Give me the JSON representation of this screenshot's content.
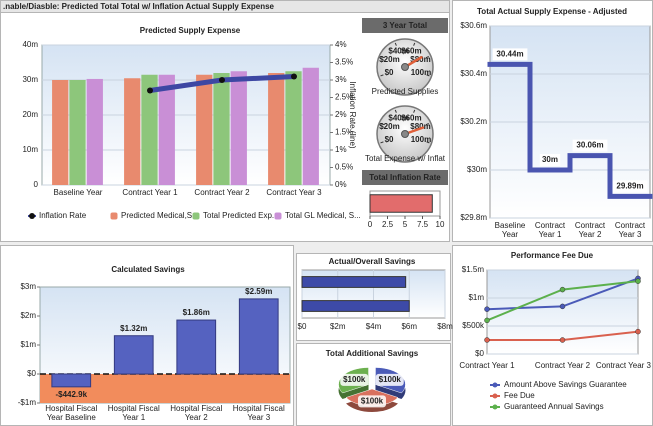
{
  "header": {
    "title": ".nable/Diasble: Predicted Total Total w/ Inflation Actual Supply Expense"
  },
  "chart_data": [
    {
      "type": "bar",
      "title": "Predicted Supply Expense",
      "categories": [
        "Baseline Year",
        "Contract Year 1",
        "Contract Year 2",
        "Contract Year 3"
      ],
      "series": [
        {
          "name": "Inflation Rate",
          "type": "line",
          "axis": "y2",
          "color": "#3d47a3",
          "values": [
            null,
            2.7,
            3.0,
            3.1
          ]
        },
        {
          "name": "Predicted Medical,S...",
          "color": "#e88a6e",
          "values": [
            30,
            30.5,
            31.5,
            32
          ]
        },
        {
          "name": "Total Predicted Exp...",
          "color": "#8dc67b",
          "values": [
            30,
            31.5,
            32,
            32.5
          ]
        },
        {
          "name": "Total GL Medical, S...",
          "color": "#c98fd6",
          "values": [
            30.3,
            31.5,
            32.5,
            33.5
          ]
        }
      ],
      "ylim": [
        0,
        40
      ],
      "yticks": [
        0,
        {
          "value": 10,
          "label": "10m"
        },
        {
          "value": 20,
          "label": "20m"
        },
        {
          "value": 30,
          "label": "30m"
        },
        {
          "value": 40,
          "label": "40m"
        }
      ],
      "y2lim": [
        0,
        4
      ],
      "y2ticks": [
        {
          "value": 0,
          "label": "0%"
        },
        {
          "value": 0.5,
          "label": "0.5%"
        },
        {
          "value": 1,
          "label": "1%"
        },
        {
          "value": 1.5,
          "label": "1.5%"
        },
        {
          "value": 2,
          "label": "2%"
        },
        {
          "value": 2.5,
          "label": "2.5%"
        },
        {
          "value": 3,
          "label": "3%"
        },
        {
          "value": 3.5,
          "label": "3.5%"
        },
        {
          "value": 4,
          "label": "4%"
        }
      ],
      "y2label": "Inflation Rate (line)",
      "grid": true
    },
    {
      "type": "gauge",
      "title": "3 Year Total",
      "label": "Predicted Supplies",
      "value": 77,
      "lim": [
        0,
        100
      ],
      "ticks": [
        {
          "value": 0,
          "label": "$0"
        },
        {
          "value": 20,
          "label": "$20m"
        },
        {
          "value": 40,
          "label": "$40m"
        },
        {
          "value": 60,
          "label": "$60m"
        },
        {
          "value": 80,
          "label": "$80m"
        },
        {
          "value": 100,
          "label": "100m"
        }
      ]
    },
    {
      "type": "gauge",
      "label": "Total Expense w/ Inflat",
      "value": 82,
      "lim": [
        0,
        100
      ],
      "ticks": [
        {
          "value": 0,
          "label": "$0"
        },
        {
          "value": 20,
          "label": "$20m"
        },
        {
          "value": 40,
          "label": "$40m"
        },
        {
          "value": 60,
          "label": "$60m"
        },
        {
          "value": 80,
          "label": "$80m"
        },
        {
          "value": 100,
          "label": "100m"
        }
      ]
    },
    {
      "type": "hbar",
      "title": "Total Inflation Rate",
      "values": [
        8.9
      ],
      "color": "#e26c6c",
      "xlim": [
        0,
        10
      ],
      "xticks": [
        0,
        2.5,
        5,
        7.5,
        10
      ]
    },
    {
      "type": "step",
      "title": "Total Actual Supply Expense - Adjusted",
      "categories": [
        "Baseline Year",
        "Contract Year 1",
        "Contract Year 2",
        "Contract Year 3"
      ],
      "values": [
        30.44,
        30,
        30.06,
        29.89
      ],
      "value_labels": [
        "30.44m",
        "30m",
        "30.06m",
        "29.89m"
      ],
      "color": "#4a55b0",
      "ylim": [
        29.8,
        30.6
      ],
      "yticks": [
        {
          "value": 29.8,
          "label": "$29.8m"
        },
        {
          "value": 30,
          "label": "$30m"
        },
        {
          "value": 30.2,
          "label": "$30.2m"
        },
        {
          "value": 30.4,
          "label": "$30.4m"
        },
        {
          "value": 30.6,
          "label": "$30.6m"
        }
      ],
      "grid": true
    },
    {
      "type": "bar",
      "title": "Calculated Savings",
      "categories": [
        "Hospital Fiscal Year Baseline",
        "Hospital Fiscal Year 1",
        "Hospital Fiscal Year 2",
        "Hospital Fiscal Year 3"
      ],
      "values": [
        -0.4429,
        1.32,
        1.86,
        2.59
      ],
      "value_labels": [
        "-$442.9k",
        "$1.32m",
        "$1.86m",
        "$2.59m"
      ],
      "color": "#5562c0",
      "ylim": [
        -1,
        3
      ],
      "yticks": [
        {
          "value": -1,
          "label": "-$1m"
        },
        {
          "value": 0,
          "label": "$0"
        },
        {
          "value": 1,
          "label": "$1m"
        },
        {
          "value": 2,
          "label": "$2m"
        },
        {
          "value": 3,
          "label": "$3m"
        }
      ]
    },
    {
      "type": "hbar",
      "title": "Actual/Overall Savings",
      "values": [
        5.8,
        6.0
      ],
      "color": "#3d4aa8",
      "xlim": [
        0,
        8
      ],
      "xticks": [
        {
          "value": 0,
          "label": "$0"
        },
        {
          "value": 2,
          "label": "$2m"
        },
        {
          "value": 4,
          "label": "$4m"
        },
        {
          "value": 6,
          "label": "$6m"
        },
        {
          "value": 8,
          "label": "$8m"
        }
      ],
      "grid": true
    },
    {
      "type": "pie",
      "title": "Total Additional Savings",
      "values": [
        100,
        100,
        100
      ],
      "value_labels": [
        "$100k",
        "$100k",
        "$100k"
      ],
      "colors": [
        "#6cb04e",
        "#4b5bb8",
        "#d9705e"
      ]
    },
    {
      "type": "line",
      "title": "Performance Fee Due",
      "categories": [
        "Contract Year 1",
        "Contract Year 2",
        "Contract Year 3"
      ],
      "series": [
        {
          "name": "Amount Above Savings Guarantee",
          "color": "#4a5ab8",
          "values": [
            0.8,
            0.85,
            1.35
          ]
        },
        {
          "name": "Fee Due",
          "color": "#d9604e",
          "values": [
            0.25,
            0.25,
            0.4
          ]
        },
        {
          "name": "Guaranteed Annual Savings",
          "color": "#5cb04c",
          "values": [
            0.6,
            1.15,
            1.3
          ]
        }
      ],
      "ylim": [
        0,
        1.5
      ],
      "yticks": [
        {
          "value": 0,
          "label": "$0"
        },
        {
          "value": 0.5,
          "label": "$500k"
        },
        {
          "value": 1,
          "label": "$1m"
        },
        {
          "value": 1.5,
          "label": "$1.5m"
        }
      ],
      "grid": true
    }
  ]
}
